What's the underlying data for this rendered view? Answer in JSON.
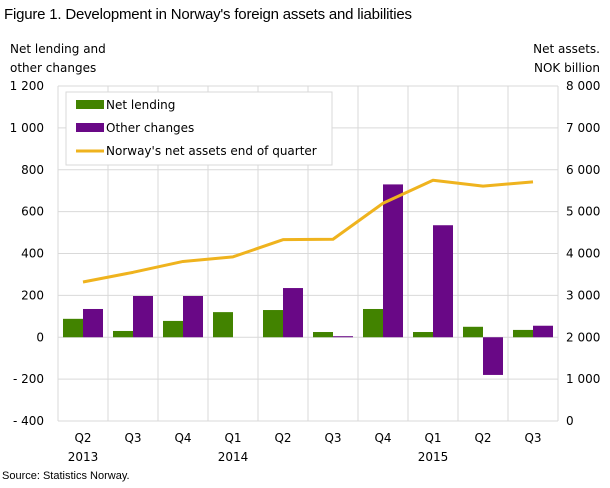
{
  "title": "Figure 1. Development in Norway's foreign assets and liabilities",
  "left_axis_label_line1": "Net lending and",
  "left_axis_label_line2": "other changes",
  "right_axis_label_line1": "Net assets.",
  "right_axis_label_line2": "NOK billion",
  "source": "Source: Statistics Norway.",
  "colors": {
    "net_lending": "#428300",
    "other_changes": "#690886",
    "net_assets": "#efb31e",
    "grid": "#d9d9d9"
  },
  "chart_data": {
    "type": "bar",
    "title": "Figure 1. Development in Norway's foreign assets and liabilities",
    "categories": [
      "Q2 2013",
      "Q3 2013",
      "Q4 2013",
      "Q1 2014",
      "Q2 2014",
      "Q3 2014",
      "Q4 2014",
      "Q1 2015",
      "Q2 2015",
      "Q3 2015"
    ],
    "x_tick_labels": [
      "Q2",
      "Q3",
      "Q4",
      "Q1",
      "Q2",
      "Q3",
      "Q4",
      "Q1",
      "Q2",
      "Q3"
    ],
    "x_year_labels": [
      {
        "index": 0,
        "label": "2013"
      },
      {
        "index": 3,
        "label": "2014"
      },
      {
        "index": 7,
        "label": "2015"
      }
    ],
    "series": [
      {
        "name": "Net lending",
        "type": "bar",
        "axis": "left",
        "values": [
          88,
          30,
          78,
          120,
          130,
          25,
          135,
          25,
          50,
          35
        ]
      },
      {
        "name": "Other changes",
        "type": "bar",
        "axis": "left",
        "values": [
          135,
          197,
          197,
          0,
          235,
          5,
          730,
          535,
          -180,
          55
        ]
      },
      {
        "name": "Norway's net assets end of quarter",
        "type": "line",
        "axis": "right",
        "values": [
          3320,
          3550,
          3810,
          3920,
          4330,
          4340,
          5200,
          5750,
          5610,
          5710
        ]
      }
    ],
    "ylabel": "Net lending and other changes",
    "ylabel_right": "Net assets. NOK billion",
    "ylim": [
      -400,
      1200
    ],
    "ylim_right": [
      0,
      8000
    ],
    "yticks_left": [
      "1 200",
      "1 000",
      "800",
      "600",
      "400",
      "200",
      "0",
      "- 200",
      "- 400"
    ],
    "yticks_right": [
      "8 000",
      "7 000",
      "6 000",
      "5 000",
      "4 000",
      "3 000",
      "2 000",
      "1 000",
      "0"
    ],
    "grid": true,
    "legend_position": "top-left inside"
  }
}
